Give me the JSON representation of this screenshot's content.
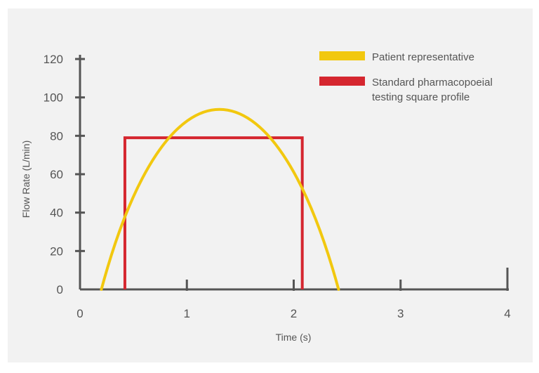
{
  "chart_data": {
    "type": "line",
    "xlabel": "Time (s)",
    "ylabel": "Flow Rate (L/min)",
    "xlim": [
      0,
      4
    ],
    "ylim": [
      0,
      120
    ],
    "x_ticks": [
      "0",
      "1",
      "2",
      "3",
      "4"
    ],
    "y_ticks": [
      "0",
      "20",
      "40",
      "60",
      "80",
      "100",
      "120"
    ],
    "grid": false,
    "legend_position": "top-right",
    "series": [
      {
        "name": "Patient representative",
        "color": "#f2c80f",
        "shape": "parabola",
        "x": [
          0.2,
          0.4,
          0.6,
          0.8,
          1.0,
          1.2,
          1.3,
          1.4,
          1.6,
          1.8,
          2.0,
          2.2,
          2.42
        ],
        "y": [
          0,
          34,
          60,
          79,
          89,
          93,
          94,
          93,
          87,
          74,
          54,
          29,
          0
        ]
      },
      {
        "name_lines": [
          "Standard pharmacopoeial",
          "testing square profile"
        ],
        "color": "#d5262f",
        "shape": "square",
        "x": [
          0.42,
          0.42,
          2.08,
          2.08
        ],
        "y": [
          0,
          79,
          79,
          0
        ]
      }
    ]
  }
}
